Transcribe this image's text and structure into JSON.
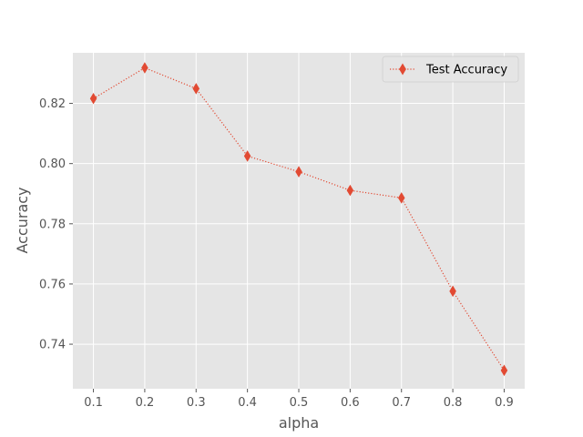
{
  "chart_data": {
    "type": "line",
    "title": "",
    "xlabel": "alpha",
    "ylabel": "Accuracy",
    "x": [
      0.1,
      0.2,
      0.3,
      0.4,
      0.5,
      0.6,
      0.7,
      0.8,
      0.9
    ],
    "x_tick_labels": [
      "0.1",
      "0.2",
      "0.3",
      "0.4",
      "0.5",
      "0.6",
      "0.7",
      "0.8",
      "0.9"
    ],
    "y_ticks": [
      0.74,
      0.76,
      0.78,
      0.8,
      0.82
    ],
    "y_tick_labels": [
      "0.74",
      "0.76",
      "0.78",
      "0.80",
      "0.82"
    ],
    "xlim": [
      0.06,
      0.94
    ],
    "ylim": [
      0.7252,
      0.8368
    ],
    "grid": true,
    "legend_position": "top-right",
    "series": [
      {
        "name": "Test Accuracy",
        "values": [
          0.8216,
          0.8318,
          0.8249,
          0.8025,
          0.7973,
          0.7911,
          0.7886,
          0.7576,
          0.7313
        ],
        "color": "#e24a33",
        "marker": "thin-diamond",
        "line_style": "dotted"
      }
    ],
    "colors": {
      "plot_background": "#e5e5e5",
      "grid": "#ffffff"
    }
  }
}
